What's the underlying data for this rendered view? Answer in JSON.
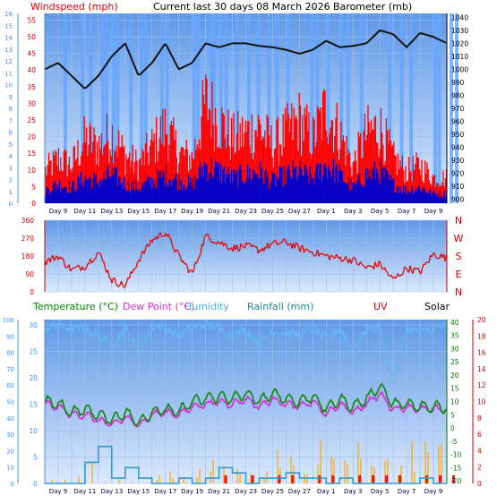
{
  "header": {
    "windspeed_label": "Windspeed (mph)",
    "title": "Current last 30 days 08 March 2026",
    "dashes": "---",
    "barometer_label": "Barometer (mb)"
  },
  "colors": {
    "panel_bg_top": "#6fa2e8",
    "panel_bg_bottom": "#d6e6fb",
    "grid": "#9ec1ee",
    "wind_avg": "#0000cc",
    "wind_gust": "#ff0000",
    "sunshine_bars": "#66a6ff",
    "barometer": "#111111",
    "direction": "#e01010",
    "temperature": "#1a8a1a",
    "dew_point": "#d633d6",
    "humidity": "#66b8f0",
    "rainfall": "#3399cc",
    "uv": "#ee1111",
    "solar": "#ffa500",
    "label_red": "#dd0000",
    "label_blue": "#4a8fdc",
    "label_green": "#007700"
  },
  "chart_data": [
    {
      "id": "wind-baro",
      "type": "line",
      "x_labels": [
        "Day 9",
        "Day 11",
        "Day 13",
        "Day 15",
        "Day 17",
        "Day 19",
        "Day 21",
        "Day 23",
        "Day 25",
        "Day 27",
        "Day 1",
        "Day 3",
        "Day 5",
        "Day 7",
        "Day 9"
      ],
      "left_axis": {
        "label": "Windspeed (mph)",
        "ticks": [
          0,
          5,
          10,
          15,
          20,
          25,
          30,
          35,
          40,
          45,
          50,
          55
        ],
        "ylim": [
          0,
          57
        ]
      },
      "far_left_axis": {
        "ticks": [
          0,
          1,
          2,
          3,
          4,
          5,
          6,
          7,
          8,
          9,
          10,
          11,
          12,
          13,
          14,
          15,
          16
        ],
        "ylim": [
          0,
          16
        ]
      },
      "right_axis": {
        "label": "Barometer (mb)",
        "ticks": [
          900,
          910,
          920,
          930,
          940,
          950,
          960,
          970,
          980,
          990,
          1000,
          1010,
          1020,
          1030,
          1040
        ],
        "ylim": [
          897,
          1043
        ]
      },
      "series": [
        {
          "name": "Barometer",
          "unit": "mb",
          "days": [
            0,
            1,
            2,
            3,
            4,
            5,
            6,
            7,
            8,
            9,
            10,
            11,
            12,
            13,
            14,
            15,
            16,
            17,
            18,
            19,
            20,
            21,
            22,
            23,
            24,
            25,
            26,
            27,
            28,
            29,
            30
          ],
          "values": [
            1000,
            1005,
            995,
            985,
            995,
            1010,
            1020,
            995,
            1005,
            1020,
            1000,
            1005,
            1020,
            1017,
            1020,
            1020,
            1018,
            1017,
            1015,
            1012,
            1015,
            1022,
            1017,
            1018,
            1020,
            1030,
            1027,
            1017,
            1028,
            1025,
            1020
          ]
        },
        {
          "name": "Wind gust",
          "unit": "mph",
          "days": [
            0,
            1,
            2,
            3,
            4,
            5,
            6,
            7,
            8,
            9,
            10,
            11,
            12,
            13,
            14,
            15,
            16,
            17,
            18,
            19,
            20,
            21,
            22,
            23,
            24,
            25,
            26,
            27,
            28,
            29,
            30
          ],
          "values": [
            10,
            14,
            12,
            20,
            18,
            22,
            15,
            12,
            18,
            24,
            16,
            14,
            32,
            26,
            20,
            22,
            24,
            18,
            22,
            26,
            20,
            30,
            22,
            12,
            22,
            24,
            14,
            10,
            12,
            8,
            8
          ]
        },
        {
          "name": "Wind average",
          "unit": "mph",
          "days": [
            0,
            1,
            2,
            3,
            4,
            5,
            6,
            7,
            8,
            9,
            10,
            11,
            12,
            13,
            14,
            15,
            16,
            17,
            18,
            19,
            20,
            21,
            22,
            23,
            24,
            25,
            26,
            27,
            28,
            29,
            30
          ],
          "values": [
            4,
            6,
            5,
            8,
            7,
            9,
            6,
            5,
            7,
            9,
            7,
            6,
            12,
            10,
            8,
            9,
            10,
            7,
            9,
            10,
            8,
            12,
            9,
            5,
            9,
            10,
            6,
            4,
            5,
            3,
            3
          ]
        }
      ]
    },
    {
      "id": "direction",
      "type": "scatter",
      "x_labels": [
        "Day 9",
        "Day 11",
        "Day 13",
        "Day 15",
        "Day 17",
        "Day 19",
        "Day 21",
        "Day 23",
        "Day 25",
        "Day 27",
        "Day 1",
        "Day 3",
        "Day 5",
        "Day 7",
        "Day 9"
      ],
      "left_axis": {
        "ticks": [
          0,
          90,
          180,
          270,
          360
        ],
        "ylim": [
          0,
          360
        ]
      },
      "right_axis": {
        "ticks": [
          "N",
          "W",
          "S",
          "E",
          "N"
        ]
      },
      "series": [
        {
          "name": "Wind direction",
          "unit": "deg",
          "days": [
            0,
            1,
            2,
            3,
            4,
            5,
            6,
            7,
            8,
            9,
            10,
            11,
            12,
            13,
            14,
            15,
            16,
            17,
            18,
            19,
            20,
            21,
            22,
            23,
            24,
            25,
            26,
            27,
            28,
            29,
            30
          ],
          "values": [
            150,
            180,
            110,
            130,
            200,
            60,
            30,
            160,
            260,
            300,
            180,
            90,
            280,
            250,
            220,
            230,
            210,
            240,
            250,
            220,
            200,
            180,
            170,
            160,
            120,
            140,
            60,
            120,
            100,
            190,
            170
          ]
        }
      ]
    },
    {
      "id": "temp-rain",
      "type": "line",
      "x_labels": [
        "Day 9",
        "Day 11",
        "Day 13",
        "Day 15",
        "Day 17",
        "Day 19",
        "Day 21",
        "Day 23",
        "Day 25",
        "Day 27",
        "Day 1",
        "Day 3",
        "Day 5",
        "Day 7",
        "Day 9"
      ],
      "legend": [
        "Temperature (°C)",
        "Dew Point (°C)",
        "Humidity",
        "Rainfall (mm)",
        "UV",
        "Solar"
      ],
      "left_axis": {
        "ticks": [
          0,
          5,
          10,
          15,
          20,
          25,
          30
        ],
        "ylim": [
          0,
          31
        ]
      },
      "far_left_axis": {
        "ticks": [
          0,
          10,
          20,
          30,
          40,
          50,
          60,
          70,
          80,
          90,
          100
        ],
        "ylim": [
          0,
          100
        ]
      },
      "right_axis": {
        "ticks": [
          -20,
          -15,
          -10,
          -5,
          0,
          5,
          10,
          15,
          20,
          25,
          30,
          35,
          40
        ],
        "ylim": [
          -21,
          41
        ]
      },
      "far_right_axis": {
        "ticks": [
          0,
          2,
          4,
          6,
          8,
          10,
          12,
          14,
          16,
          18,
          20
        ],
        "ylim": [
          0,
          20
        ]
      },
      "series": [
        {
          "name": "Temperature (°C)",
          "axis": "right",
          "days": [
            0,
            1,
            2,
            3,
            4,
            5,
            6,
            7,
            8,
            9,
            10,
            11,
            12,
            13,
            14,
            15,
            16,
            17,
            18,
            19,
            20,
            21,
            22,
            23,
            24,
            25,
            26,
            27,
            28,
            29,
            30
          ],
          "values": [
            10,
            9,
            6,
            7,
            5,
            3,
            6,
            2,
            6,
            7,
            6,
            10,
            11,
            12,
            11,
            13,
            10,
            13,
            11,
            10,
            12,
            7,
            11,
            8,
            11,
            16,
            9,
            9,
            8,
            8,
            8
          ]
        },
        {
          "name": "Dew Point (°C)",
          "axis": "right",
          "days": [
            0,
            1,
            2,
            3,
            4,
            5,
            6,
            7,
            8,
            9,
            10,
            11,
            12,
            13,
            14,
            15,
            16,
            17,
            18,
            19,
            20,
            21,
            22,
            23,
            24,
            25,
            26,
            27,
            28,
            29,
            30
          ],
          "values": [
            9,
            8,
            5,
            5,
            3,
            1,
            4,
            1,
            5,
            6,
            5,
            8,
            9,
            10,
            9,
            11,
            8,
            11,
            9,
            8,
            10,
            5,
            9,
            6,
            9,
            13,
            7,
            8,
            7,
            7,
            7
          ]
        },
        {
          "name": "Humidity",
          "axis": "far_left",
          "days": [
            0,
            1,
            2,
            3,
            4,
            5,
            6,
            7,
            8,
            9,
            10,
            11,
            12,
            13,
            14,
            15,
            16,
            17,
            18,
            19,
            20,
            21,
            22,
            23,
            24,
            25,
            26,
            27,
            28,
            29,
            30
          ],
          "values": [
            95,
            96,
            95,
            94,
            90,
            84,
            95,
            80,
            96,
            95,
            90,
            95,
            97,
            95,
            90,
            94,
            85,
            93,
            92,
            90,
            95,
            88,
            95,
            82,
            94,
            96,
            60,
            94,
            92,
            95,
            96
          ]
        },
        {
          "name": "Rainfall (mm)",
          "axis": "left",
          "days": [
            0,
            1,
            2,
            3,
            4,
            5,
            6,
            7,
            8,
            9,
            10,
            11,
            12,
            13,
            14,
            15,
            16,
            17,
            18,
            19,
            20,
            21,
            22,
            23,
            24,
            25,
            26,
            27,
            28,
            29,
            30
          ],
          "values": [
            0,
            0,
            0,
            4,
            7,
            1,
            3,
            1,
            0,
            0,
            1,
            0,
            1,
            3,
            2,
            0,
            1,
            1,
            2,
            1,
            1,
            0,
            1,
            0,
            0,
            0,
            0,
            0,
            1,
            0,
            0
          ]
        },
        {
          "name": "UV",
          "axis": "far_right",
          "days": [
            0,
            1,
            2,
            3,
            4,
            5,
            6,
            7,
            8,
            9,
            10,
            11,
            12,
            13,
            14,
            15,
            16,
            17,
            18,
            19,
            20,
            21,
            22,
            23,
            24,
            25,
            26,
            27,
            28,
            29,
            30
          ],
          "values": [
            0,
            0,
            0,
            0,
            0,
            0,
            0,
            0,
            0,
            0,
            0,
            0,
            0,
            1,
            0,
            1,
            0,
            1,
            1,
            0,
            1,
            1,
            0,
            1,
            1,
            1,
            1,
            0,
            1,
            1,
            1
          ]
        },
        {
          "name": "Solar",
          "axis": "far_right",
          "days": [
            0,
            1,
            2,
            3,
            4,
            5,
            6,
            7,
            8,
            9,
            10,
            11,
            12,
            13,
            14,
            15,
            16,
            17,
            18,
            19,
            20,
            21,
            22,
            23,
            24,
            25,
            26,
            27,
            28,
            29,
            30
          ],
          "values": [
            1,
            0,
            1,
            4,
            1,
            0,
            1,
            0,
            0,
            1,
            1,
            0,
            2,
            2,
            1,
            3,
            0,
            2,
            3,
            0,
            2,
            5,
            1,
            3,
            4,
            4,
            1,
            2,
            5,
            3,
            3
          ]
        }
      ]
    }
  ]
}
